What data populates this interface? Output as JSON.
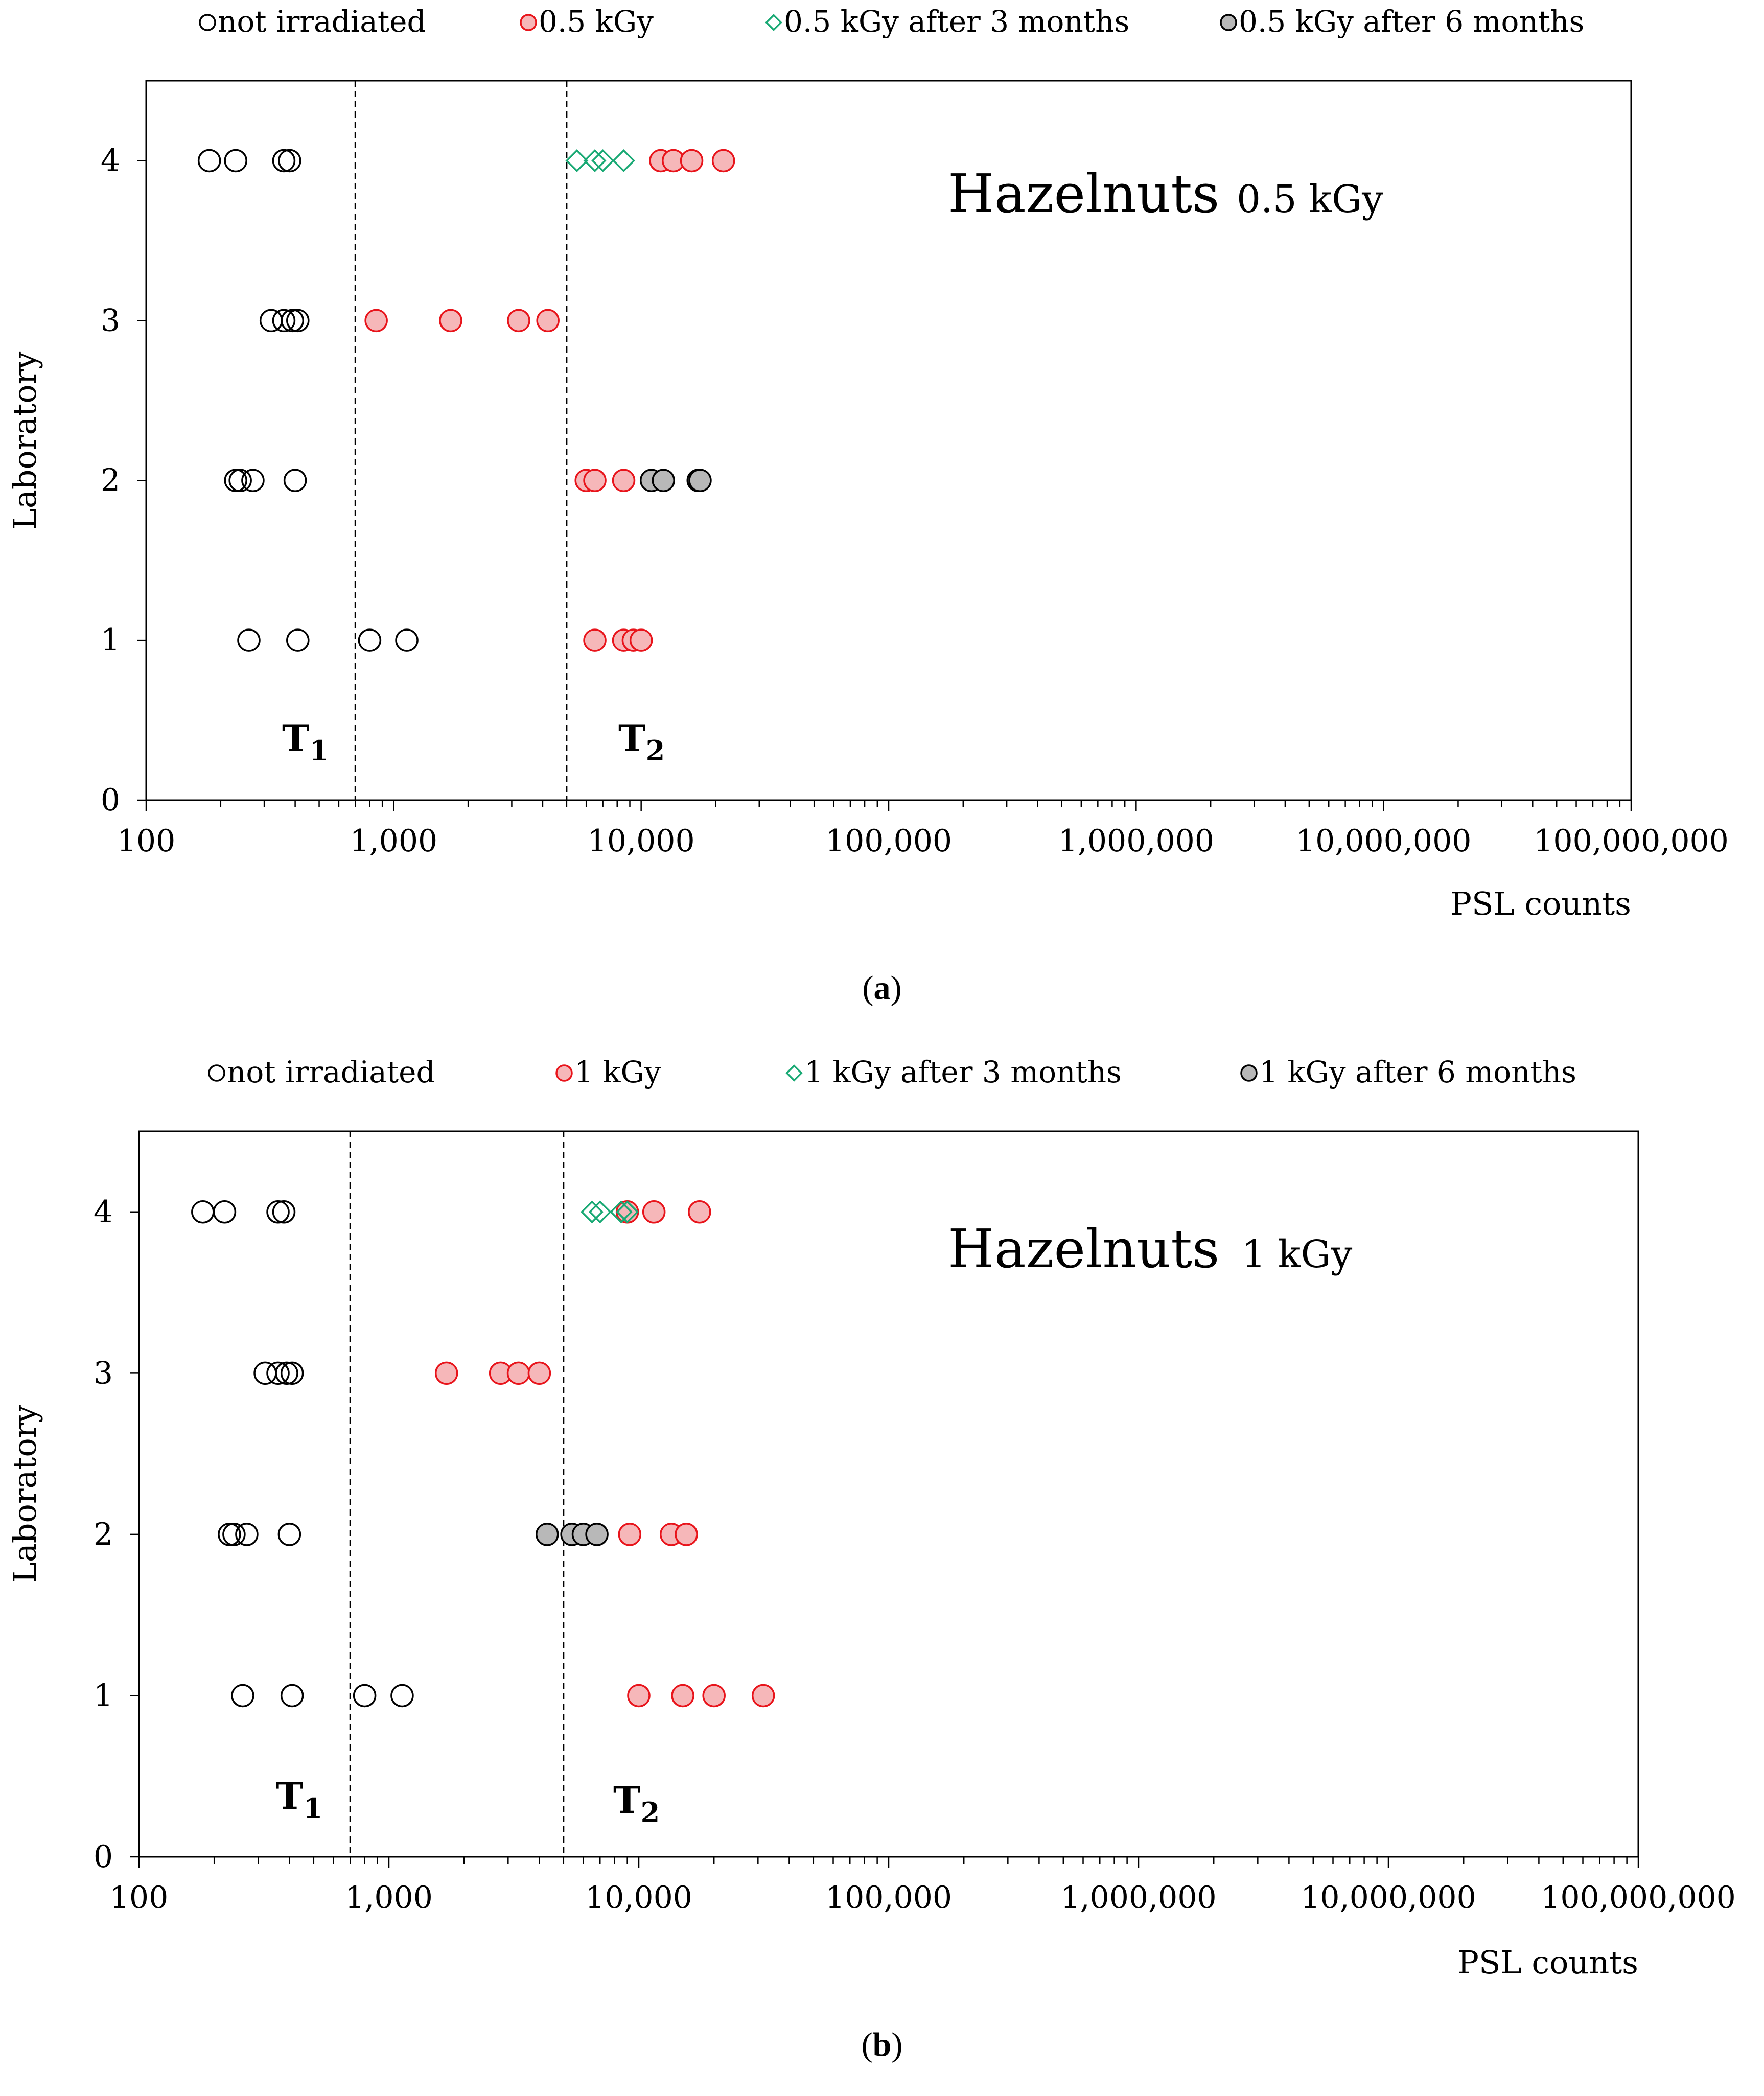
{
  "chart_data": [
    {
      "type": "scatter",
      "panel": "a",
      "panel_label": "a",
      "title": "Hazelnuts",
      "subtitle": "0.5 kGy",
      "xlabel": "PSL counts",
      "ylabel": "Laboratory",
      "xscale": "log",
      "xlim": [
        100,
        100000000
      ],
      "ylim": [
        0,
        4.5
      ],
      "xticks": [
        100,
        1000,
        10000,
        100000,
        1000000,
        10000000,
        100000000
      ],
      "xtick_labels": [
        "100",
        "1,000",
        "10,000",
        "100,000",
        "1,000,000",
        "10,000,000",
        "100,000,000"
      ],
      "yticks": [
        0,
        1,
        2,
        3,
        4
      ],
      "ytick_labels": [
        "0",
        "1",
        "2",
        "3",
        "4"
      ],
      "thresholds": [
        {
          "name": "T",
          "sub": "1",
          "value": 700
        },
        {
          "name": "T",
          "sub": "2",
          "value": 5000
        }
      ],
      "legend_position": "top",
      "series": [
        {
          "name": "not irradiated",
          "marker": "circle-open",
          "color": "#000000",
          "points": [
            [
              180,
              4
            ],
            [
              230,
              4
            ],
            [
              360,
              4
            ],
            [
              380,
              4
            ],
            [
              320,
              3
            ],
            [
              360,
              3
            ],
            [
              390,
              3
            ],
            [
              410,
              3
            ],
            [
              230,
              2
            ],
            [
              240,
              2
            ],
            [
              270,
              2
            ],
            [
              400,
              2
            ],
            [
              260,
              1
            ],
            [
              410,
              1
            ],
            [
              800,
              1
            ],
            [
              1130,
              1
            ]
          ]
        },
        {
          "name": "0.5 kGy",
          "marker": "circle-red",
          "color": "#e8141b",
          "points": [
            [
              12000,
              4
            ],
            [
              13500,
              4
            ],
            [
              16000,
              4
            ],
            [
              21500,
              4
            ],
            [
              850,
              3
            ],
            [
              1700,
              3
            ],
            [
              3200,
              3
            ],
            [
              4200,
              3
            ],
            [
              6000,
              2
            ],
            [
              6500,
              2
            ],
            [
              8500,
              2
            ],
            [
              6500,
              1
            ],
            [
              8500,
              1
            ],
            [
              9300,
              1
            ],
            [
              10000,
              1
            ]
          ]
        },
        {
          "name": "0.5 kGy after 3 months",
          "marker": "diamond-open",
          "color": "#19a974",
          "points": [
            [
              5500,
              4
            ],
            [
              6500,
              4
            ],
            [
              7000,
              4
            ],
            [
              8500,
              4
            ]
          ]
        },
        {
          "name": "0.5 kGy after 6 months",
          "marker": "circle-gray",
          "color": "#b3b3b3",
          "points": [
            [
              11000,
              2
            ],
            [
              12300,
              2
            ],
            [
              17000,
              2
            ],
            [
              17300,
              2
            ]
          ]
        }
      ]
    },
    {
      "type": "scatter",
      "panel": "b",
      "panel_label": "b",
      "title": "Hazelnuts",
      "subtitle": "1 kGy",
      "xlabel": "PSL counts",
      "ylabel": "Laboratory",
      "xscale": "log",
      "xlim": [
        100,
        100000000
      ],
      "ylim": [
        0,
        4.5
      ],
      "xticks": [
        100,
        1000,
        10000,
        100000,
        1000000,
        10000000,
        100000000
      ],
      "xtick_labels": [
        "100",
        "1,000",
        "10,000",
        "100,000",
        "1,000,000",
        "10,000,000",
        "100,000,000"
      ],
      "yticks": [
        0,
        1,
        2,
        3,
        4
      ],
      "ytick_labels": [
        "0",
        "1",
        "2",
        "3",
        "4"
      ],
      "thresholds": [
        {
          "name": "T",
          "sub": "1",
          "value": 700
        },
        {
          "name": "T",
          "sub": "2",
          "value": 5000
        }
      ],
      "legend_position": "top",
      "series": [
        {
          "name": "not irradiated",
          "marker": "circle-open",
          "color": "#000000",
          "points": [
            [
              180,
              4
            ],
            [
              220,
              4
            ],
            [
              360,
              4
            ],
            [
              380,
              4
            ],
            [
              320,
              3
            ],
            [
              360,
              3
            ],
            [
              390,
              3
            ],
            [
              410,
              3
            ],
            [
              230,
              2
            ],
            [
              240,
              2
            ],
            [
              270,
              2
            ],
            [
              400,
              2
            ],
            [
              260,
              1
            ],
            [
              410,
              1
            ],
            [
              800,
              1
            ],
            [
              1130,
              1
            ]
          ]
        },
        {
          "name": "1 kGy",
          "marker": "circle-red",
          "color": "#e8141b",
          "points": [
            [
              9000,
              4
            ],
            [
              11500,
              4
            ],
            [
              17500,
              4
            ],
            [
              1700,
              3
            ],
            [
              2800,
              3
            ],
            [
              3300,
              3
            ],
            [
              4000,
              3
            ],
            [
              9200,
              2
            ],
            [
              13500,
              2
            ],
            [
              15500,
              2
            ],
            [
              10000,
              1
            ],
            [
              15000,
              1
            ],
            [
              20000,
              1
            ],
            [
              31500,
              1
            ]
          ]
        },
        {
          "name": "1 kGy after 3 months",
          "marker": "diamond-open",
          "color": "#19a974",
          "points": [
            [
              6500,
              4
            ],
            [
              7000,
              4
            ],
            [
              8500,
              4
            ],
            [
              9000,
              4
            ]
          ]
        },
        {
          "name": "1 kGy after 6 months",
          "marker": "circle-gray",
          "color": "#b3b3b3",
          "points": [
            [
              4300,
              2
            ],
            [
              5400,
              2
            ],
            [
              6000,
              2
            ],
            [
              6800,
              2
            ]
          ]
        }
      ]
    }
  ]
}
